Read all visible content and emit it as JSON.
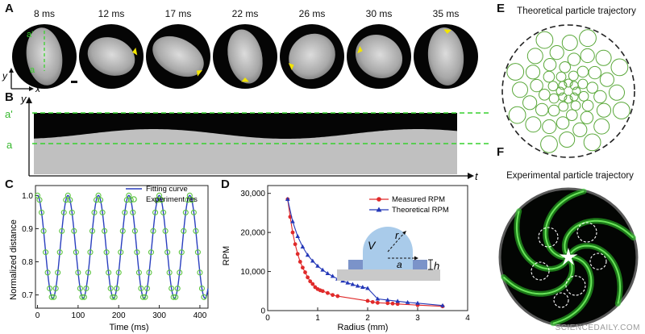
{
  "panels": {
    "A": {
      "label": "A",
      "frames": [
        "8 ms",
        "12 ms",
        "17 ms",
        "22 ms",
        "26 ms",
        "30 ms",
        "35 ms"
      ],
      "marker_a_prime": "a'",
      "marker_a": "a",
      "axis_y": "y",
      "axis_x": "x"
    },
    "B": {
      "label": "B",
      "axis_y": "y",
      "axis_t": "t",
      "line_a_prime": "a'",
      "line_a": "a"
    },
    "C": {
      "label": "C"
    },
    "D": {
      "label": "D",
      "inset_V": "V",
      "inset_r": "r",
      "inset_a": "a",
      "inset_h": "h"
    },
    "E": {
      "label": "E",
      "title": "Theoretical particle trajectory"
    },
    "F": {
      "label": "F",
      "title": "Experimental particle trajectory"
    }
  },
  "chart_data": [
    {
      "id": "C",
      "type": "line",
      "xlabel": "Time (ms)",
      "ylabel": "Normalized distance",
      "xlim": [
        -5,
        420
      ],
      "ylim": [
        0.66,
        1.03
      ],
      "xticks": [
        0,
        100,
        200,
        300,
        400
      ],
      "yticks": [
        0.7,
        0.8,
        0.9,
        1.0
      ],
      "ytick_labels": [
        "0.7",
        "0.8",
        "0.9",
        "1.0"
      ],
      "legend": [
        "Fitting curve",
        "Experiment res"
      ],
      "legend_position": "top-right",
      "fit": {
        "name": "Fitting curve",
        "period_ms": 75,
        "phase_ms": 0,
        "min": 0.69,
        "max": 1.0,
        "color": "#2a3fbf"
      },
      "experiment": {
        "name": "Experiment res",
        "color": "#5cc43f",
        "x": [
          0,
          5,
          10,
          15,
          20,
          25,
          30,
          35,
          40,
          45,
          50,
          55,
          60,
          65,
          70,
          75,
          80,
          85,
          90,
          95,
          100,
          105,
          110,
          115,
          120,
          125,
          130,
          135,
          140,
          145,
          150,
          155,
          160,
          165,
          170,
          175,
          180,
          185,
          190,
          195,
          200,
          205,
          210,
          215,
          220,
          225,
          230,
          235,
          240,
          245,
          250,
          255,
          260,
          265,
          270,
          275,
          280,
          285,
          290,
          295,
          300,
          305,
          310,
          315,
          320,
          325,
          330,
          335,
          340,
          345,
          350,
          355,
          360,
          365,
          370,
          375,
          380,
          385,
          390,
          395,
          400,
          405,
          410
        ]
      }
    },
    {
      "id": "D",
      "type": "line",
      "xlabel": "Radius (mm)",
      "ylabel": "RPM",
      "xlim": [
        0,
        4
      ],
      "ylim": [
        0,
        32000
      ],
      "xticks": [
        0,
        1,
        2,
        3,
        4
      ],
      "yticks": [
        0,
        10000,
        20000,
        30000
      ],
      "ytick_labels": [
        "0",
        "10,000",
        "20,000",
        "30,000"
      ],
      "legend_position": "top-right",
      "series": [
        {
          "name": "Measured RPM",
          "color": "#e02a2a",
          "marker": "circle",
          "x": [
            0.4,
            0.45,
            0.5,
            0.55,
            0.6,
            0.65,
            0.7,
            0.75,
            0.8,
            0.85,
            0.9,
            0.95,
            1.0,
            1.05,
            1.1,
            1.2,
            1.3,
            1.4,
            2.0,
            2.1,
            2.2,
            2.4,
            2.5,
            2.6,
            3.0,
            3.5
          ],
          "y": [
            28500,
            24000,
            20000,
            17000,
            14500,
            12500,
            11000,
            9800,
            8500,
            7500,
            6800,
            6000,
            5500,
            5200,
            5000,
            4500,
            4000,
            3700,
            2500,
            2200,
            2000,
            1900,
            1800,
            1700,
            1400,
            1100
          ]
        },
        {
          "name": "Theoretical RPM",
          "color": "#2438b8",
          "marker": "triangle",
          "x": [
            0.4,
            0.5,
            0.6,
            0.7,
            0.8,
            0.9,
            1.0,
            1.1,
            1.2,
            1.3,
            1.4,
            1.5,
            1.6,
            1.7,
            1.8,
            1.9,
            2.0,
            2.2,
            2.4,
            2.6,
            2.8,
            3.0,
            3.5
          ],
          "y": [
            28500,
            22800,
            19000,
            16300,
            14200,
            12700,
            11400,
            10400,
            9500,
            8800,
            8100,
            7600,
            7100,
            6700,
            6300,
            6000,
            5700,
            3000,
            2700,
            2400,
            2100,
            1900,
            1300
          ]
        }
      ]
    }
  ],
  "footer": {
    "watermark": "SCIENCEDAILY.COM"
  }
}
